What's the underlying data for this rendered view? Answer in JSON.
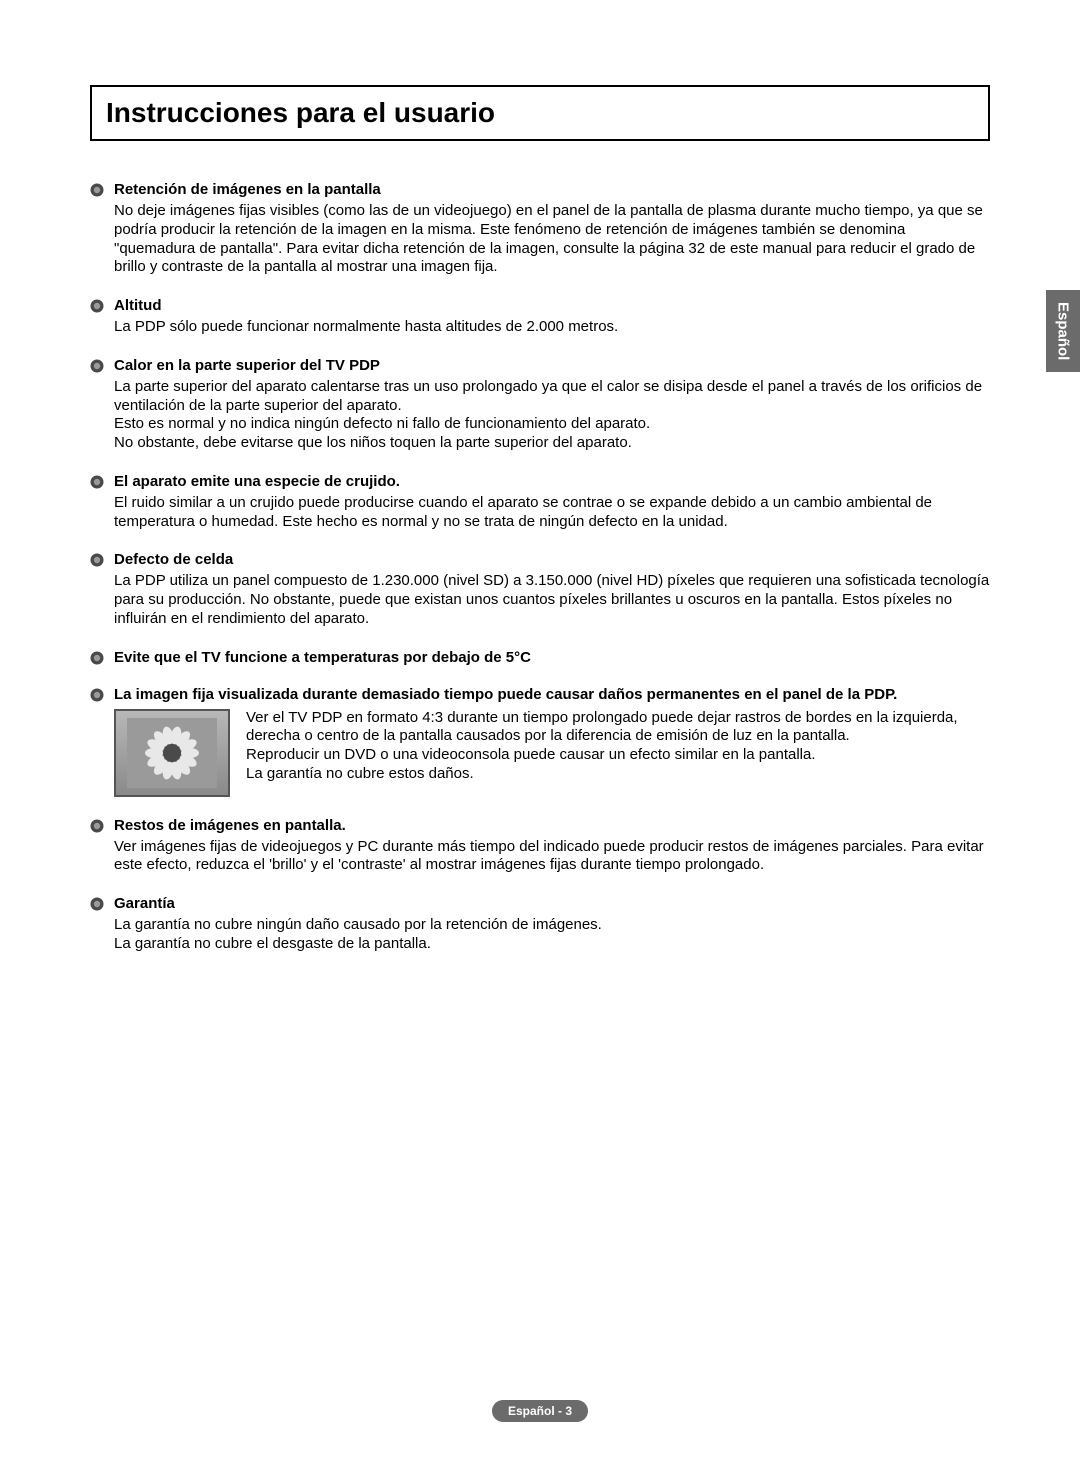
{
  "title": "Instrucciones para el usuario",
  "side_tab": "Español",
  "footer": "Español - 3",
  "bullet_colors": {
    "outer": "#4a4a4a",
    "inner": "#9a9a9a"
  },
  "sections": [
    {
      "heading": "Retención de imágenes en la pantalla",
      "body": "No deje imágenes fijas visibles (como las de un videojuego) en el panel de la pantalla de plasma durante mucho tiempo, ya que se podría producir la retención de la imagen en la misma. Este fenómeno de retención de imágenes también se denomina \"quemadura de pantalla\". Para evitar dicha retención de la imagen, consulte la página 32 de este manual para reducir el grado de brillo y contraste de la pantalla al mostrar una imagen fija."
    },
    {
      "heading": "Altitud",
      "body": "La PDP sólo puede funcionar normalmente hasta altitudes de 2.000 metros."
    },
    {
      "heading": "Calor en la parte superior del TV PDP",
      "body": "La parte superior del aparato calentarse tras un uso prolongado ya que el calor se disipa desde el panel a través de los orificios de ventilación de la parte superior del aparato.\nEsto es normal y no indica ningún defecto ni fallo de funcionamiento del aparato.\nNo obstante, debe evitarse que los niños toquen la parte superior del aparato."
    },
    {
      "heading": "El aparato emite una especie de crujido.",
      "body": "El ruido similar a un crujido puede producirse cuando el aparato se contrae o se expande debido a un cambio ambiental de temperatura o humedad. Este hecho es normal y no se trata de ningún defecto en la unidad."
    },
    {
      "heading": "Defecto de celda",
      "body": "La PDP utiliza un panel compuesto de 1.230.000 (nivel SD) a 3.150.000 (nivel HD) píxeles que requieren una sofisticada tecnología para su producción. No obstante, puede que existan unos cuantos píxeles brillantes u oscuros en la pantalla. Estos píxeles no influirán en el rendimiento del aparato."
    },
    {
      "heading": "Evite que el TV funcione a temperaturas por debajo de 5°C",
      "body": ""
    },
    {
      "heading": "La imagen fija visualizada durante demasiado tiempo puede causar daños permanentes en el panel de la PDP.",
      "has_image": true,
      "image_body": "Ver el TV PDP en formato 4:3 durante un tiempo prolongado puede dejar rastros de bordes en la izquierda, derecha o centro de la pantalla causados por la diferencia de emisión de luz en la pantalla.\nReproducir un DVD o una videoconsola puede causar un efecto similar en la pantalla.\nLa garantía no cubre estos daños."
    },
    {
      "heading": "Restos de imágenes en pantalla.",
      "body": "Ver imágenes fijas de videojuegos y PC durante más tiempo del indicado puede producir restos de imágenes parciales. Para evitar este efecto, reduzca el 'brillo' y el 'contraste' al mostrar imágenes fijas durante tiempo prolongado."
    },
    {
      "heading": "Garantía",
      "body": "La garantía no cubre ningún daño causado por la retención de imágenes.\nLa garantía no cubre el desgaste de la pantalla."
    }
  ]
}
